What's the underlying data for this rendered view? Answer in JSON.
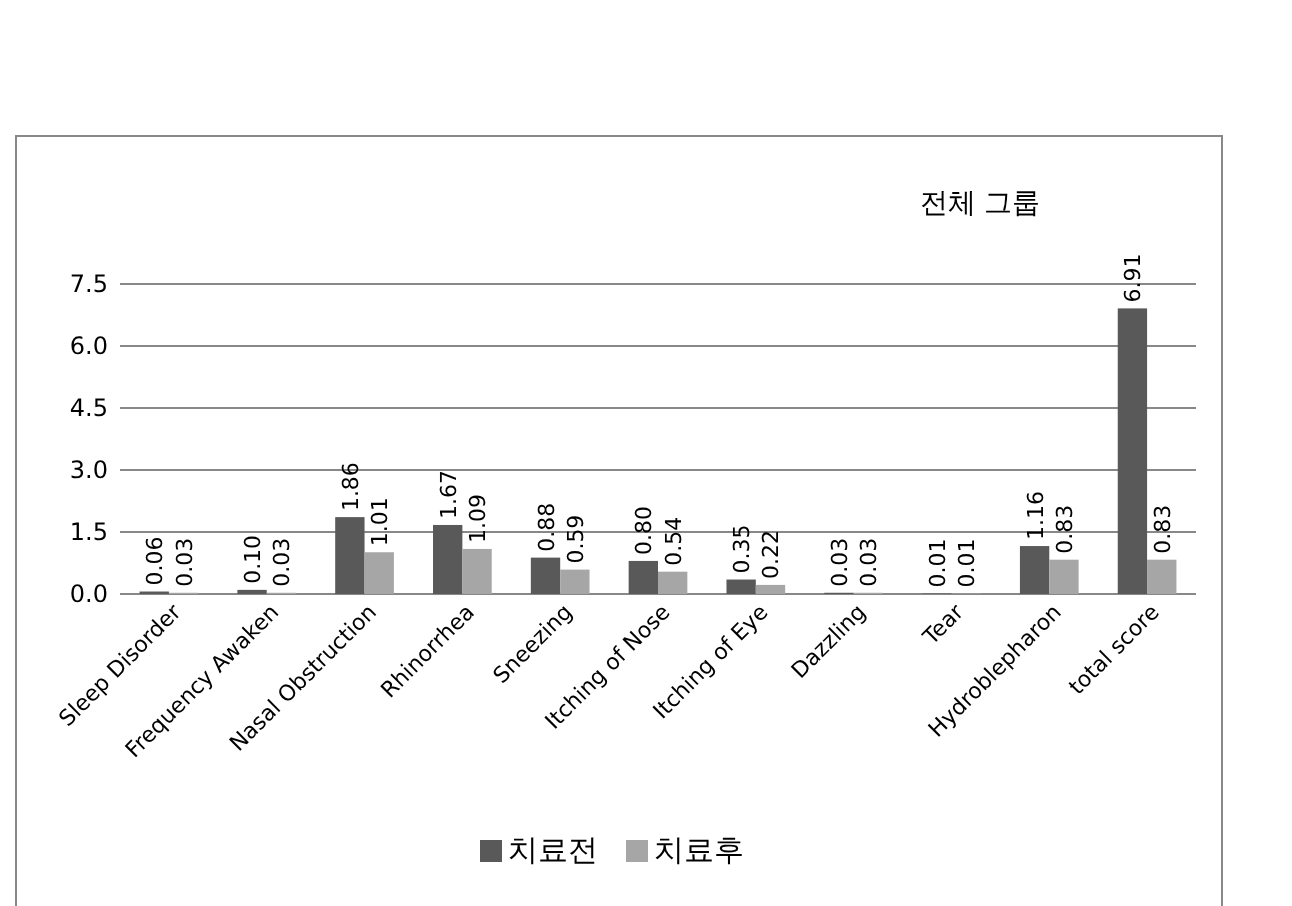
{
  "chart_data": {
    "type": "bar",
    "title": "전체 그룹",
    "categories": [
      "Sleep Disorder",
      "Frequency Awaken",
      "Nasal Obstruction",
      "Rhinorrhea",
      "Sneezing",
      "Itching of Nose",
      "Itching of Eye",
      "Dazzling",
      "Tear",
      "Hydroblepharon",
      "total score"
    ],
    "series": [
      {
        "name": "치료전",
        "color": "#595959",
        "values": [
          0.06,
          0.1,
          1.86,
          1.67,
          0.88,
          0.8,
          0.35,
          0.03,
          0.01,
          1.16,
          6.91
        ],
        "value_labels": [
          "0.06",
          "0.10",
          "1.86",
          "1.67",
          "0.88",
          "0.80",
          "0.35",
          "0.03",
          "0.01",
          "1.16",
          "6.91"
        ]
      },
      {
        "name": "치료후",
        "color": "#a6a6a6",
        "values": [
          0.03,
          0.03,
          1.01,
          1.09,
          0.59,
          0.54,
          0.22,
          0.03,
          0.01,
          0.83,
          0.83
        ],
        "value_labels": [
          "0.03",
          "0.03",
          "1.01",
          "1.09",
          "0.59",
          "0.54",
          "0.22",
          "0.03",
          "0.01",
          "0.83",
          "0.83"
        ]
      }
    ],
    "ylim": [
      0,
      7.5
    ],
    "yticks": [
      {
        "value": 0,
        "label": "0.0"
      },
      {
        "value": 1.5,
        "label": "1.5"
      },
      {
        "value": 3,
        "label": "3.0"
      },
      {
        "value": 4.5,
        "label": "4.5"
      },
      {
        "value": 6,
        "label": "6.0"
      },
      {
        "value": 7.5,
        "label": "7.5"
      }
    ],
    "grid": "y",
    "legend": "bottom"
  }
}
